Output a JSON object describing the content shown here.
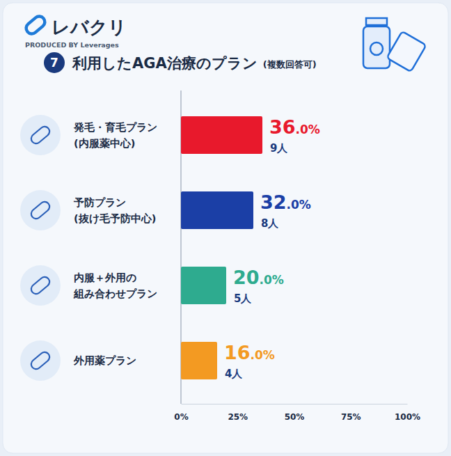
{
  "header": {
    "brand": "レバクリ",
    "produced_by": "PRODUCED BY Leverages",
    "badge": "7"
  },
  "chart_data": {
    "type": "bar",
    "orientation": "horizontal",
    "title": "利用したAGA治療のプラン",
    "subtitle": "(複数回答可)",
    "categories": [
      "発毛・育毛プラン\n(内服薬中心)",
      "予防プラン\n(抜け毛予防中心)",
      "内服＋外用の\n組み合わせプラン",
      "外用薬プラン"
    ],
    "values": [
      36,
      32,
      20,
      16
    ],
    "value_labels": [
      "36.0%",
      "32.0%",
      "20.0%",
      "16.0%"
    ],
    "count_labels": [
      "9人",
      "8人",
      "5人",
      "4人"
    ],
    "colors": [
      "#e8192c",
      "#1b3fa6",
      "#2eab8f",
      "#f39a22"
    ],
    "xlim": [
      0,
      100
    ],
    "xticks": [
      {
        "value": 0,
        "label": "0%"
      },
      {
        "value": 25,
        "label": "25%"
      },
      {
        "value": 50,
        "label": "50%"
      },
      {
        "value": 75,
        "label": "75%"
      },
      {
        "value": 100,
        "label": "100%"
      }
    ],
    "grid": false,
    "data_labels": true
  }
}
